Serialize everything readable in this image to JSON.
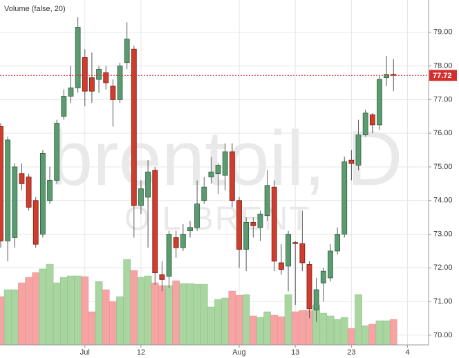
{
  "chart_data": {
    "type": "candlestick",
    "title": "Volume (false, 20)",
    "watermark": "brentoil, D",
    "watermark_sub": "OIL BRENT",
    "x": [
      0,
      1,
      2,
      3,
      4,
      5,
      6,
      7,
      8,
      9,
      10,
      11,
      12,
      13,
      14,
      15,
      16,
      17,
      18,
      19,
      20,
      21,
      22,
      23,
      24,
      25,
      26,
      27,
      28,
      29,
      30,
      31,
      32,
      33,
      34,
      35,
      36,
      37,
      38,
      39,
      40,
      41,
      42,
      43,
      44,
      45,
      46,
      47,
      48,
      49,
      50,
      51,
      52,
      53,
      54,
      55,
      56
    ],
    "open": [
      76.2,
      72.8,
      72.9,
      74.8,
      74.7,
      74.0,
      73.0,
      74.0,
      74.6,
      76.5,
      77.1,
      77.35,
      78.25,
      77.65,
      77.6,
      77.8,
      77.4,
      77.0,
      78.1,
      78.5,
      73.85,
      74.1,
      74.9,
      71.8,
      71.75,
      72.9,
      72.6,
      73.1,
      73.2,
      74.0,
      74.7,
      74.8,
      74.75,
      75.45,
      74.0,
      72.55,
      73.35,
      73.2,
      73.55,
      74.4,
      72.15,
      72.05,
      72.75,
      72.72,
      72.1,
      70.75,
      71.55,
      71.7,
      72.5,
      73.0,
      75.2,
      75.05,
      75.95,
      76.55,
      76.25,
      77.65,
      77.75
    ],
    "high": [
      76.3,
      75.9,
      75.1,
      75.1,
      74.8,
      74.1,
      75.5,
      75.0,
      76.4,
      77.3,
      78.0,
      79.45,
      78.5,
      78.4,
      78.0,
      78.0,
      77.6,
      78.1,
      79.3,
      78.6,
      74.6,
      75.2,
      75.0,
      72.2,
      73.1,
      73.1,
      73.3,
      73.4,
      74.6,
      74.7,
      75.3,
      75.1,
      75.7,
      75.7,
      74.1,
      73.5,
      73.5,
      73.7,
      74.9,
      74.6,
      72.7,
      73.1,
      72.8,
      73.7,
      72.2,
      71.7,
      72.0,
      72.7,
      73.2,
      75.3,
      75.5,
      76.4,
      76.7,
      76.6,
      77.7,
      78.3,
      78.2
    ],
    "low": [
      72.6,
      72.2,
      72.6,
      74.3,
      73.7,
      72.6,
      72.9,
      73.9,
      74.5,
      76.4,
      76.9,
      77.2,
      76.8,
      76.9,
      77.2,
      77.3,
      76.2,
      76.9,
      77.9,
      72.9,
      73.6,
      72.6,
      71.5,
      71.3,
      71.4,
      72.3,
      72.5,
      72.9,
      73.1,
      73.9,
      74.5,
      74.2,
      74.3,
      73.8,
      72.0,
      71.9,
      72.9,
      72.8,
      73.4,
      71.9,
      71.8,
      71.3,
      70.9,
      71.9,
      70.5,
      70.4,
      71.0,
      71.6,
      72.4,
      72.9,
      74.6,
      74.9,
      75.9,
      76.0,
      76.1,
      77.4,
      77.25
    ],
    "close": [
      72.8,
      75.8,
      75.0,
      74.5,
      73.8,
      72.7,
      75.4,
      74.6,
      76.3,
      77.1,
      77.35,
      79.15,
      77.25,
      77.25,
      77.9,
      77.5,
      77.0,
      78.0,
      78.8,
      73.85,
      74.35,
      74.85,
      71.85,
      71.65,
      73.0,
      72.6,
      73.0,
      73.2,
      73.9,
      74.4,
      74.85,
      75.05,
      75.45,
      74.0,
      72.55,
      73.35,
      73.25,
      73.6,
      74.45,
      72.2,
      71.95,
      73.0,
      72.72,
      72.15,
      70.78,
      71.35,
      71.9,
      72.5,
      73.0,
      75.15,
      75.1,
      75.95,
      76.6,
      76.25,
      77.6,
      77.75,
      77.72
    ],
    "volume": [
      70,
      80,
      80,
      90,
      98,
      105,
      110,
      117,
      90,
      98,
      100,
      100,
      99,
      48,
      92,
      80,
      63,
      70,
      124,
      108,
      98,
      100,
      90,
      86,
      86,
      93,
      89,
      89,
      88,
      88,
      55,
      66,
      68,
      78,
      72,
      73,
      42,
      40,
      48,
      43,
      41,
      73,
      48,
      50,
      50,
      58,
      46,
      42,
      37,
      40,
      24,
      73,
      28,
      30,
      35,
      35,
      37
    ],
    "volume_ylim": [
      0,
      500
    ],
    "up_color": "#5b9b70",
    "down_color": "#cf3d2e",
    "volume_up_color": "#a8d5a0",
    "volume_down_color": "#f5a3a3",
    "last_price": 77.72,
    "last_price_color": "#d32f2f",
    "xlim": [
      -0.1,
      61
    ],
    "xticks": [
      {
        "value": 12,
        "label": "Jul"
      },
      {
        "value": 20,
        "label": "12"
      },
      {
        "value": 34,
        "label": "Aug"
      },
      {
        "value": 42,
        "label": "13"
      },
      {
        "value": 50,
        "label": "23"
      },
      {
        "value": 58,
        "label": "4"
      }
    ],
    "ylim": [
      69.71,
      79.96
    ],
    "yticks": [
      {
        "value": 70,
        "label": "70.00"
      },
      {
        "value": 71,
        "label": "71.00"
      },
      {
        "value": 72,
        "label": "72.00"
      },
      {
        "value": 73,
        "label": "73.00"
      },
      {
        "value": 74,
        "label": "74.00"
      },
      {
        "value": 75,
        "label": "75.00"
      },
      {
        "value": 76,
        "label": "76.00"
      },
      {
        "value": 77,
        "label": "77.00"
      },
      {
        "value": 78,
        "label": "78.00"
      },
      {
        "value": 79,
        "label": "79.00"
      }
    ],
    "grid": true
  }
}
